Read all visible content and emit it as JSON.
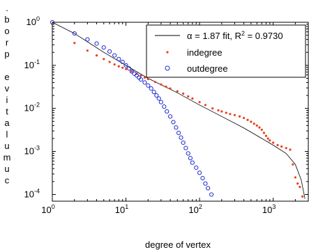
{
  "chart_data": {
    "type": "scatter",
    "xlabel": "degree of vertex",
    "ylabel": "cumulative prob.",
    "xscale": "log",
    "yscale": "log",
    "xlim": [
      1,
      3000
    ],
    "ylim": [
      7e-05,
      1
    ],
    "grid": false,
    "legend_position": "top-right",
    "x_ticks": [
      {
        "base": "10",
        "exp": "0",
        "value": 1
      },
      {
        "base": "10",
        "exp": "1",
        "value": 10
      },
      {
        "base": "10",
        "exp": "2",
        "value": 100
      },
      {
        "base": "10",
        "exp": "3",
        "value": 1000
      }
    ],
    "y_ticks": [
      {
        "base": "10",
        "exp": "0",
        "value": 1
      },
      {
        "base": "10",
        "exp": "-1",
        "value": 0.1
      },
      {
        "base": "10",
        "exp": "-2",
        "value": 0.01
      },
      {
        "base": "10",
        "exp": "-3",
        "value": 0.001
      },
      {
        "base": "10",
        "exp": "-4",
        "value": 0.0001
      }
    ],
    "fit": {
      "label_prefix": "α = 1.87 fit, R",
      "label_sup": "2",
      "label_suffix": " = 0.9730",
      "color": "#000000",
      "points": [
        [
          1,
          1
        ],
        [
          2,
          0.55
        ],
        [
          5,
          0.2
        ],
        [
          10,
          0.1
        ],
        [
          20,
          0.05
        ],
        [
          50,
          0.023
        ],
        [
          100,
          0.012
        ],
        [
          200,
          0.0065
        ],
        [
          400,
          0.0035
        ],
        [
          700,
          0.002
        ],
        [
          1000,
          0.0014
        ],
        [
          1500,
          0.0009
        ],
        [
          2000,
          0.0005
        ],
        [
          2400,
          0.00022
        ],
        [
          2700,
          8e-05
        ]
      ]
    },
    "series": [
      {
        "name": "indegree",
        "marker": "dot",
        "color": "#e8401c",
        "points": [
          [
            1,
            0.9
          ],
          [
            2,
            0.33
          ],
          [
            3,
            0.22
          ],
          [
            4,
            0.17
          ],
          [
            5,
            0.14
          ],
          [
            6,
            0.12
          ],
          [
            7,
            0.105
          ],
          [
            8,
            0.095
          ],
          [
            9,
            0.088
          ],
          [
            10,
            0.082
          ],
          [
            12,
            0.072
          ],
          [
            14,
            0.064
          ],
          [
            16,
            0.058
          ],
          [
            18,
            0.052
          ],
          [
            20,
            0.048
          ],
          [
            25,
            0.041
          ],
          [
            30,
            0.036
          ],
          [
            35,
            0.032
          ],
          [
            40,
            0.029
          ],
          [
            50,
            0.025
          ],
          [
            60,
            0.022
          ],
          [
            70,
            0.019
          ],
          [
            80,
            0.017
          ],
          [
            100,
            0.014
          ],
          [
            120,
            0.012
          ],
          [
            150,
            0.01
          ],
          [
            180,
            0.009
          ],
          [
            200,
            0.0085
          ],
          [
            230,
            0.0079
          ],
          [
            260,
            0.0074
          ],
          [
            300,
            0.007
          ],
          [
            350,
            0.0065
          ],
          [
            400,
            0.006
          ],
          [
            450,
            0.0054
          ],
          [
            500,
            0.0049
          ],
          [
            550,
            0.0044
          ],
          [
            600,
            0.004
          ],
          [
            650,
            0.0036
          ],
          [
            700,
            0.0032
          ],
          [
            750,
            0.0027
          ],
          [
            800,
            0.0023
          ],
          [
            850,
            0.002
          ],
          [
            900,
            0.0018
          ],
          [
            1000,
            0.0016
          ],
          [
            1150,
            0.0014
          ],
          [
            1300,
            0.0013
          ],
          [
            1500,
            0.0012
          ],
          [
            1700,
            0.0011
          ],
          [
            1850,
            0.0005
          ],
          [
            2000,
            0.00025
          ],
          [
            2150,
            0.00018
          ],
          [
            2300,
            0.00015
          ],
          [
            2500,
            9e-05
          ]
        ]
      },
      {
        "name": "outdegree",
        "marker": "circle",
        "color": "#1f2ecf",
        "points": [
          [
            1,
            1
          ],
          [
            2,
            0.55
          ],
          [
            3,
            0.4
          ],
          [
            4,
            0.32
          ],
          [
            5,
            0.26
          ],
          [
            6,
            0.21
          ],
          [
            7,
            0.17
          ],
          [
            8,
            0.14
          ],
          [
            9,
            0.12
          ],
          [
            10,
            0.1
          ],
          [
            11,
            0.085
          ],
          [
            12,
            0.072
          ],
          [
            13,
            0.064
          ],
          [
            14,
            0.058
          ],
          [
            15,
            0.052
          ],
          [
            16,
            0.047
          ],
          [
            18,
            0.04
          ],
          [
            20,
            0.034
          ],
          [
            22,
            0.029
          ],
          [
            24,
            0.024
          ],
          [
            26,
            0.02
          ],
          [
            28,
            0.017
          ],
          [
            30,
            0.014
          ],
          [
            33,
            0.011
          ],
          [
            36,
            0.0085
          ],
          [
            40,
            0.0065
          ],
          [
            44,
            0.0048
          ],
          [
            48,
            0.0036
          ],
          [
            52,
            0.0027
          ],
          [
            56,
            0.0021
          ],
          [
            60,
            0.0016
          ],
          [
            65,
            0.0012
          ],
          [
            70,
            0.0009
          ],
          [
            75,
            0.0007
          ],
          [
            80,
            0.00055
          ],
          [
            90,
            0.00042
          ],
          [
            100,
            0.00032
          ],
          [
            110,
            0.00024
          ],
          [
            120,
            0.00018
          ],
          [
            130,
            0.00014
          ],
          [
            145,
            0.0001
          ]
        ]
      }
    ]
  }
}
